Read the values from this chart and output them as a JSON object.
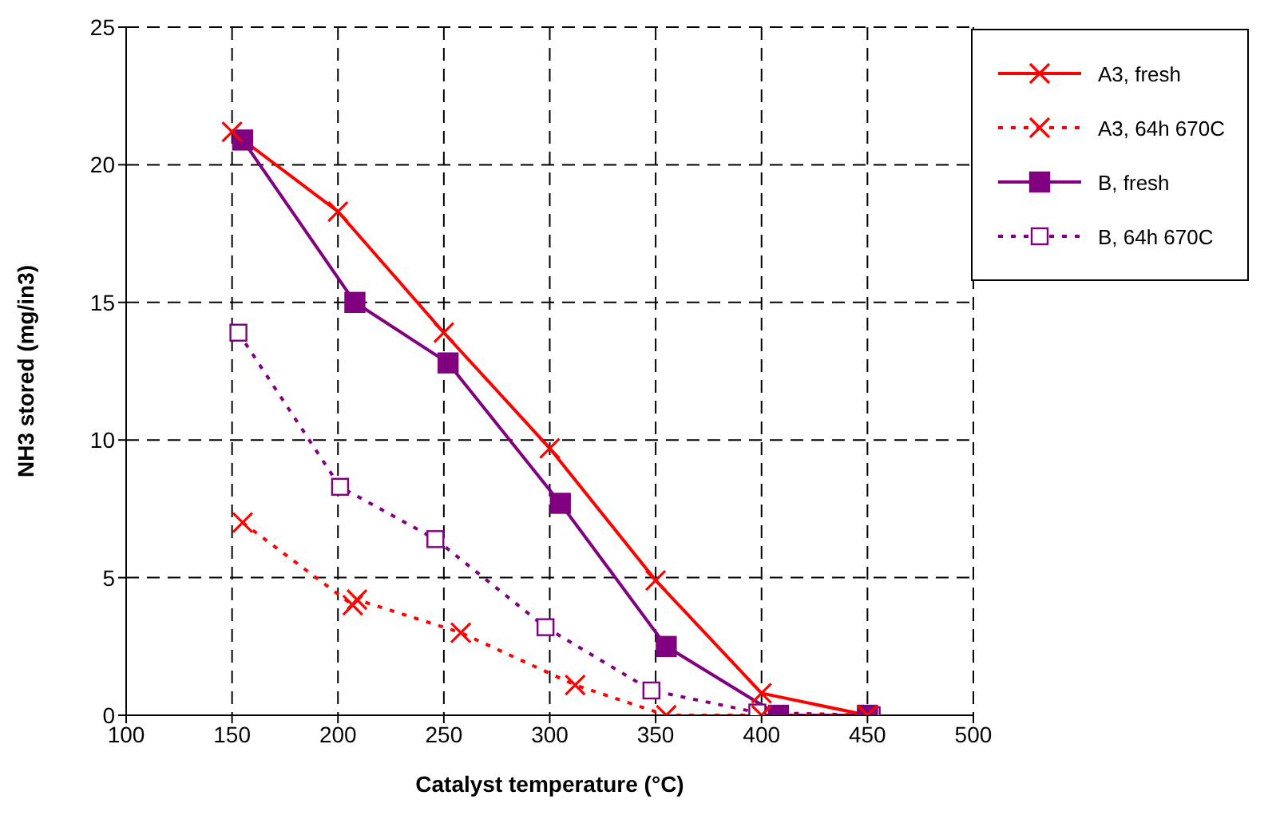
{
  "chart_data": {
    "type": "line",
    "xlabel": "Catalyst temperature (°C)",
    "ylabel": "NH3 stored (mg/in3)",
    "xlim": [
      100,
      500
    ],
    "xticks": [
      100,
      150,
      200,
      250,
      300,
      350,
      400,
      450,
      500
    ],
    "ylim": [
      0,
      25
    ],
    "yticks": [
      0,
      5,
      10,
      15,
      20,
      25
    ],
    "grid": true,
    "legend": "top right",
    "series": [
      {
        "name": "A3, fresh",
        "color": "#ff0000",
        "marker": "cross",
        "line_style": "solid",
        "x": [
          150,
          200,
          250,
          300,
          350,
          400,
          450
        ],
        "values": [
          21.2,
          18.3,
          13.9,
          9.7,
          4.9,
          0.8,
          0
        ]
      },
      {
        "name": "A3, 64h 670C",
        "color": "#ff0000",
        "marker": "cross",
        "line_style": "dashed",
        "x": [
          155,
          207,
          209,
          258,
          312,
          355,
          400,
          450
        ],
        "values": [
          7.0,
          4.0,
          4.2,
          3.0,
          1.1,
          0,
          0,
          0
        ]
      },
      {
        "name": "B, fresh",
        "color": "#800080",
        "marker": "square",
        "line_style": "solid",
        "x": [
          155,
          208,
          252,
          305,
          355,
          408,
          450
        ],
        "values": [
          20.9,
          15.0,
          12.8,
          7.7,
          2.5,
          0,
          0
        ]
      },
      {
        "name": "B, 64h 670C",
        "color": "#800080",
        "marker": "square",
        "line_style": "dashed",
        "x": [
          153,
          201,
          246,
          298,
          348,
          398,
          452
        ],
        "values": [
          13.9,
          8.3,
          6.4,
          3.2,
          0.9,
          0.1,
          0
        ]
      }
    ]
  }
}
